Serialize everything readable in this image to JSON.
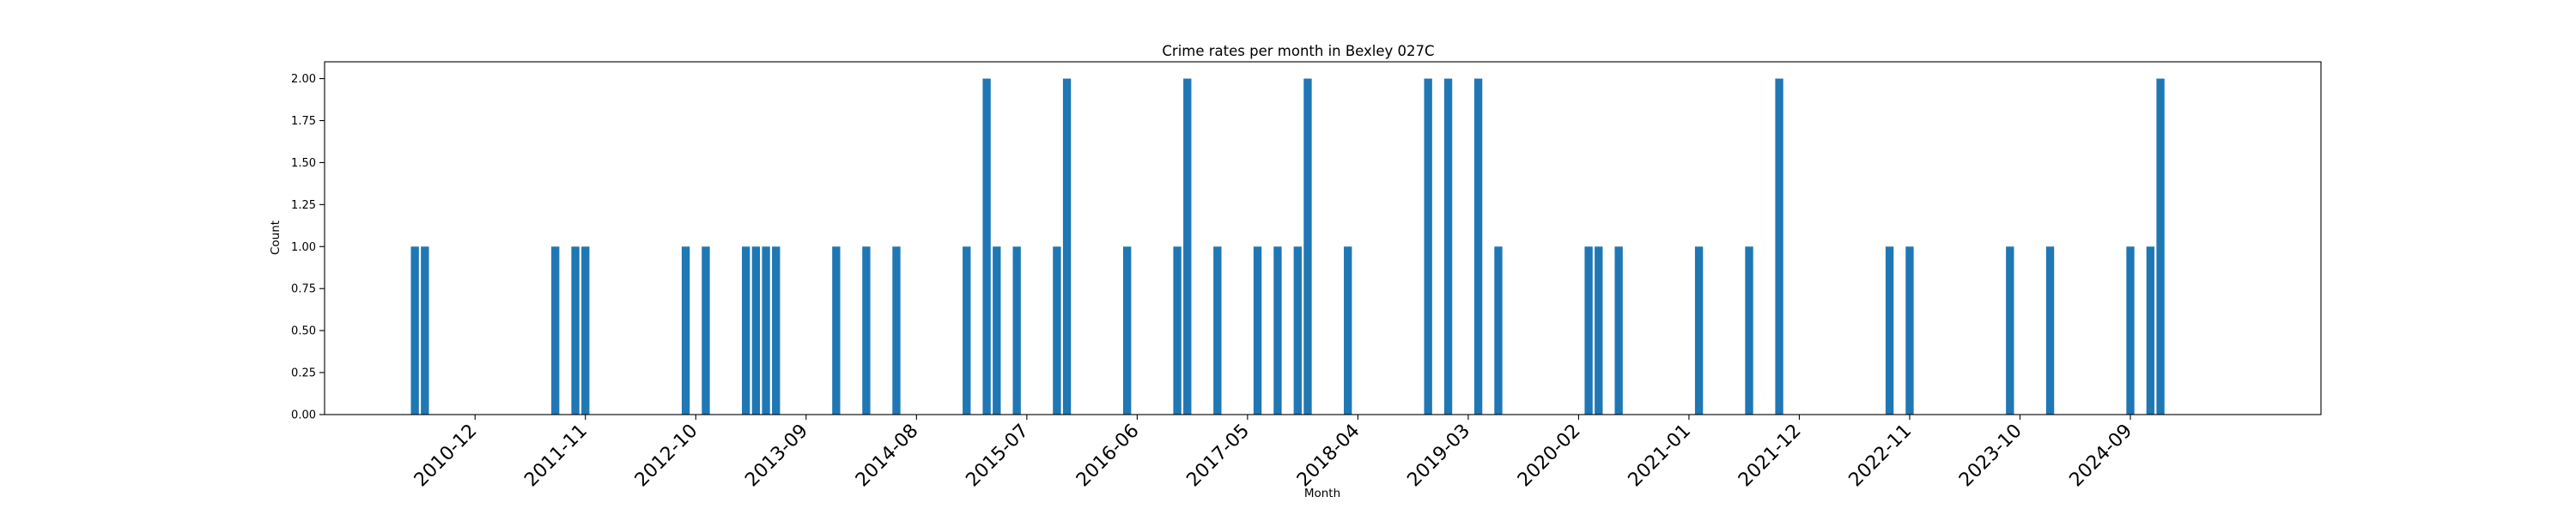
{
  "chart_data": {
    "type": "bar",
    "title": "Crime rates per month in Bexley 027C",
    "xlabel": "Month",
    "ylabel": "Count",
    "ylim": [
      0,
      2.1
    ],
    "xlim_months": [
      "2009-09",
      "2026-04"
    ],
    "grid": false,
    "color": "#1f77b4",
    "yticks": [
      "0.00",
      "0.25",
      "0.50",
      "0.75",
      "1.00",
      "1.25",
      "1.50",
      "1.75",
      "2.00"
    ],
    "xticks": [
      "2010-12",
      "2011-11",
      "2012-10",
      "2013-09",
      "2014-08",
      "2015-07",
      "2016-06",
      "2017-05",
      "2018-04",
      "2019-03",
      "2020-02",
      "2021-01",
      "2021-12",
      "2022-11",
      "2023-10",
      "2024-09"
    ],
    "categories": [
      "2010-06",
      "2010-07",
      "2011-08",
      "2011-10",
      "2011-11",
      "2012-09",
      "2012-11",
      "2013-03",
      "2013-04",
      "2013-05",
      "2013-06",
      "2013-12",
      "2014-03",
      "2014-06",
      "2015-01",
      "2015-03",
      "2015-04",
      "2015-06",
      "2015-10",
      "2015-11",
      "2016-05",
      "2016-10",
      "2016-11",
      "2017-02",
      "2017-06",
      "2017-08",
      "2017-10",
      "2017-11",
      "2018-03",
      "2018-11",
      "2019-01",
      "2019-04",
      "2019-06",
      "2020-03",
      "2020-04",
      "2020-06",
      "2021-02",
      "2021-07",
      "2021-10",
      "2022-09",
      "2022-11",
      "2023-09",
      "2024-01",
      "2024-09",
      "2024-11",
      "2024-12"
    ],
    "values": [
      1,
      1,
      1,
      1,
      1,
      1,
      1,
      1,
      1,
      1,
      1,
      1,
      1,
      1,
      1,
      2,
      1,
      1,
      1,
      2,
      1,
      1,
      2,
      1,
      1,
      1,
      1,
      2,
      1,
      2,
      2,
      2,
      1,
      1,
      1,
      1,
      1,
      1,
      2,
      1,
      1,
      1,
      1,
      1,
      1,
      2
    ]
  }
}
